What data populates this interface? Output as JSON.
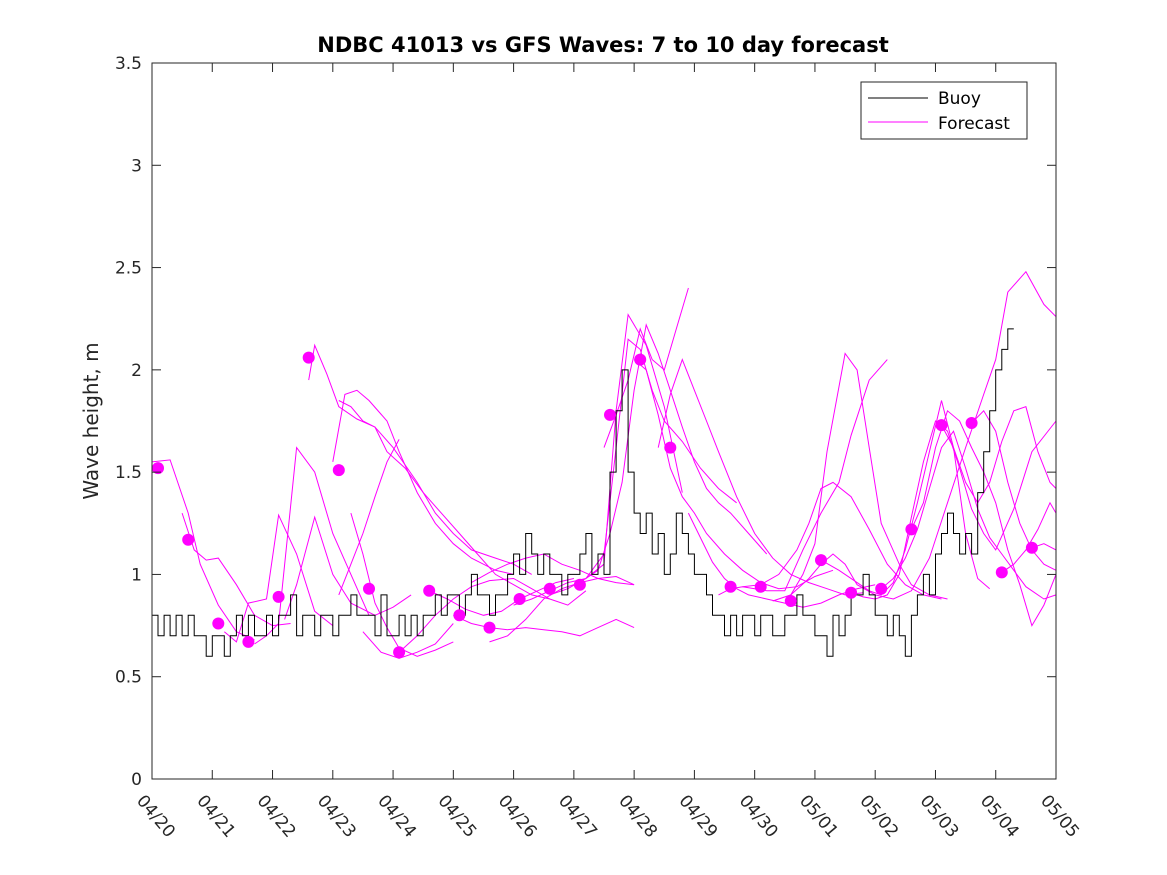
{
  "chart_data": {
    "type": "line",
    "title": "NDBC 41013 vs GFS Waves: 7 to 10 day forecast",
    "ylabel": "Wave height, m",
    "xlabel": "",
    "ylim": [
      0,
      3.5
    ],
    "xlim": [
      "04/20",
      "05/05"
    ],
    "yticks": [
      0,
      0.5,
      1,
      1.5,
      2,
      2.5,
      3,
      3.5
    ],
    "yticklabels": [
      "0",
      "0.5",
      "1",
      "1.5",
      "2",
      "2.5",
      "3",
      "3.5"
    ],
    "xticklabels": [
      "04/20",
      "04/21",
      "04/22",
      "04/23",
      "04/24",
      "04/25",
      "04/26",
      "04/27",
      "04/28",
      "04/29",
      "04/30",
      "05/01",
      "05/02",
      "05/03",
      "05/04",
      "05/05"
    ],
    "legend": {
      "location": "top-right",
      "entries": [
        "Buoy",
        "Forecast"
      ]
    },
    "colors": {
      "buoy": "#000000",
      "forecast": "#ff00ff"
    },
    "buoy": {
      "name": "Buoy",
      "x_day": [
        0,
        0.1,
        0.2,
        0.3,
        0.4,
        0.5,
        0.6,
        0.7,
        0.8,
        0.9,
        1.0,
        1.1,
        1.2,
        1.3,
        1.4,
        1.5,
        1.6,
        1.7,
        1.8,
        1.9,
        2.0,
        2.1,
        2.2,
        2.3,
        2.4,
        2.5,
        2.6,
        2.7,
        2.8,
        2.9,
        3.0,
        3.1,
        3.2,
        3.3,
        3.4,
        3.5,
        3.6,
        3.7,
        3.8,
        3.9,
        4.0,
        4.1,
        4.2,
        4.3,
        4.4,
        4.5,
        4.6,
        4.7,
        4.8,
        4.9,
        5.0,
        5.1,
        5.2,
        5.3,
        5.4,
        5.5,
        5.6,
        5.7,
        5.8,
        5.9,
        6.0,
        6.1,
        6.2,
        6.3,
        6.4,
        6.5,
        6.6,
        6.7,
        6.8,
        6.9,
        7.0,
        7.1,
        7.2,
        7.3,
        7.4,
        7.5,
        7.6,
        7.7,
        7.8,
        7.9,
        8.0,
        8.1,
        8.2,
        8.3,
        8.4,
        8.5,
        8.6,
        8.7,
        8.8,
        8.9,
        9.0,
        9.1,
        9.2,
        9.3,
        9.4,
        9.5,
        9.6,
        9.7,
        9.8,
        9.9,
        10.0,
        10.1,
        10.2,
        10.3,
        10.4,
        10.5,
        10.6,
        10.7,
        10.8,
        10.9,
        11.0,
        11.1,
        11.2,
        11.3,
        11.4,
        11.5,
        11.6,
        11.7,
        11.8,
        11.9,
        12.0,
        12.1,
        12.2,
        12.3,
        12.4,
        12.5,
        12.6,
        12.7,
        12.8,
        12.9,
        13.0,
        13.1,
        13.2,
        13.3,
        13.4,
        13.5,
        13.6,
        13.7,
        13.8,
        13.9,
        14.0,
        14.1,
        14.2,
        14.3
      ],
      "y": [
        0.8,
        0.7,
        0.8,
        0.7,
        0.8,
        0.7,
        0.8,
        0.7,
        0.7,
        0.6,
        0.7,
        0.7,
        0.6,
        0.7,
        0.8,
        0.7,
        0.8,
        0.7,
        0.7,
        0.8,
        0.7,
        0.8,
        0.8,
        0.9,
        0.7,
        0.8,
        0.8,
        0.7,
        0.8,
        0.8,
        0.7,
        0.8,
        0.8,
        0.9,
        0.8,
        0.8,
        0.8,
        0.7,
        0.9,
        0.7,
        0.7,
        0.8,
        0.7,
        0.8,
        0.7,
        0.8,
        0.8,
        0.9,
        0.8,
        0.9,
        0.9,
        0.8,
        0.9,
        1.0,
        0.9,
        0.9,
        0.8,
        0.9,
        0.9,
        1.0,
        1.1,
        1.0,
        1.2,
        1.1,
        1.0,
        1.1,
        1.0,
        1.0,
        0.9,
        1.0,
        1.0,
        1.1,
        1.2,
        1.0,
        1.1,
        1.0,
        1.5,
        1.8,
        2.0,
        1.5,
        1.3,
        1.2,
        1.3,
        1.1,
        1.2,
        1.0,
        1.1,
        1.3,
        1.2,
        1.1,
        1.0,
        1.0,
        0.9,
        0.8,
        0.8,
        0.7,
        0.8,
        0.7,
        0.8,
        0.8,
        0.7,
        0.8,
        0.8,
        0.7,
        0.7,
        0.8,
        0.8,
        0.9,
        0.8,
        0.8,
        0.7,
        0.7,
        0.6,
        0.8,
        0.7,
        0.8,
        0.9,
        0.9,
        1.0,
        0.9,
        0.8,
        0.8,
        0.7,
        0.8,
        0.7,
        0.6,
        0.8,
        0.9,
        1.0,
        0.9,
        1.1,
        1.2,
        1.3,
        1.2,
        1.1,
        1.2,
        1.1,
        1.4,
        1.6,
        1.8,
        2.0,
        2.1,
        2.2,
        2.2
      ]
    },
    "forecast_series": [
      {
        "x_day": [
          0,
          0.3,
          0.6,
          0.8,
          1.1,
          1.4,
          1.7
        ],
        "y": [
          1.55,
          1.56,
          1.3,
          1.05,
          0.85,
          0.72,
          0.68
        ]
      },
      {
        "x_day": [
          0.5,
          0.7,
          0.9,
          1.1,
          1.4,
          1.7,
          2.0,
          2.3
        ],
        "y": [
          1.3,
          1.12,
          1.07,
          1.08,
          0.95,
          0.8,
          0.75,
          0.76
        ]
      },
      {
        "x_day": [
          1.2,
          1.4,
          1.6,
          1.9,
          2.1,
          2.4,
          2.7,
          3.0
        ],
        "y": [
          0.72,
          0.67,
          0.86,
          0.88,
          1.29,
          1.1,
          0.82,
          0.75
        ]
      },
      {
        "x_day": [
          1.7,
          1.9,
          2.1,
          2.4,
          2.7,
          3.0,
          3.3,
          3.6
        ],
        "y": [
          0.66,
          0.7,
          0.76,
          1.62,
          1.5,
          1.2,
          1.0,
          0.8
        ]
      },
      {
        "x_day": [
          2.2,
          2.4,
          2.7,
          3.0,
          3.3,
          3.7,
          4.0,
          4.3
        ],
        "y": [
          0.78,
          0.95,
          1.28,
          1.0,
          0.86,
          0.8,
          0.84,
          0.9
        ]
      },
      {
        "x_day": [
          2.6,
          2.7,
          2.9,
          3.1,
          3.4,
          3.7,
          4.0,
          4.4,
          4.7,
          5.0,
          5.3,
          5.7,
          6.0,
          6.3
        ],
        "y": [
          1.95,
          2.12,
          1.98,
          1.82,
          1.76,
          1.72,
          1.62,
          1.45,
          1.3,
          1.2,
          1.12,
          1.08,
          1.05,
          1.0
        ]
      },
      {
        "x_day": [
          3.0,
          3.2,
          3.4,
          3.6,
          3.9,
          4.1,
          4.4,
          4.7,
          5.0,
          5.3,
          5.7,
          6.0
        ],
        "y": [
          1.55,
          1.88,
          1.9,
          1.85,
          1.75,
          1.6,
          1.4,
          1.25,
          1.15,
          1.08,
          1.02,
          1.0
        ]
      },
      {
        "x_day": [
          3.1,
          3.3,
          3.5,
          3.7,
          3.9,
          4.2,
          4.5,
          4.8,
          5.1,
          5.4,
          5.7,
          6.0,
          6.3,
          6.6
        ],
        "y": [
          1.85,
          1.82,
          1.75,
          1.72,
          1.6,
          1.52,
          1.4,
          1.3,
          1.2,
          1.1,
          1.0,
          0.95,
          0.9,
          0.88
        ]
      },
      {
        "x_day": [
          3.1,
          3.3,
          3.5,
          3.7,
          3.9,
          4.1
        ],
        "y": [
          0.9,
          1.05,
          1.2,
          1.38,
          1.55,
          1.66
        ]
      },
      {
        "x_day": [
          3.3,
          3.5,
          3.7,
          3.9,
          4.1,
          4.4,
          4.7,
          5.0
        ],
        "y": [
          1.3,
          1.1,
          0.86,
          0.74,
          0.64,
          0.6,
          0.63,
          0.67
        ]
      },
      {
        "x_day": [
          3.5,
          3.8,
          4.1,
          4.4,
          4.7,
          5.0
        ],
        "y": [
          0.72,
          0.62,
          0.59,
          0.62,
          0.66,
          0.76
        ]
      },
      {
        "x_day": [
          4.1,
          4.4,
          4.7,
          5.0,
          5.3,
          5.6,
          6.0,
          6.3,
          6.6,
          6.9,
          7.2
        ],
        "y": [
          0.62,
          0.7,
          0.8,
          0.88,
          0.94,
          0.97,
          0.98,
          0.93,
          0.88,
          0.85,
          0.92
        ]
      },
      {
        "x_day": [
          4.6,
          4.9,
          5.2,
          5.5,
          5.8,
          6.1,
          6.4,
          6.7,
          7.0
        ],
        "y": [
          0.92,
          0.88,
          0.83,
          0.8,
          0.82,
          0.88,
          0.92,
          0.96,
          0.98
        ]
      },
      {
        "x_day": [
          5.0,
          5.3,
          5.6,
          5.9,
          6.2,
          6.5,
          6.8,
          7.1,
          7.4,
          7.7,
          8.0
        ],
        "y": [
          0.8,
          0.76,
          0.74,
          0.73,
          0.74,
          0.73,
          0.72,
          0.7,
          0.74,
          0.78,
          0.74
        ]
      },
      {
        "x_day": [
          5.3,
          5.6,
          5.9,
          6.2,
          6.5,
          6.8,
          7.1,
          7.4,
          7.7,
          8.0
        ],
        "y": [
          0.96,
          1.01,
          1.05,
          1.08,
          1.1,
          1.05,
          1.02,
          0.98,
          0.96,
          0.95
        ]
      },
      {
        "x_day": [
          5.6,
          5.9,
          6.2,
          6.5,
          6.8,
          7.1,
          7.4,
          7.7,
          8.0
        ],
        "y": [
          0.67,
          0.7,
          0.78,
          0.88,
          0.93,
          0.96,
          0.98,
          0.99,
          0.95
        ]
      },
      {
        "x_day": [
          6.0,
          6.3,
          6.6,
          6.9,
          7.2,
          7.5,
          7.7,
          7.9,
          8.2,
          8.5,
          8.8
        ],
        "y": [
          0.85,
          0.88,
          0.92,
          0.96,
          0.98,
          1.05,
          1.8,
          2.27,
          2.12,
          1.82,
          1.4
        ]
      },
      {
        "x_day": [
          6.6,
          6.9,
          7.2,
          7.5,
          7.7,
          7.9,
          8.1,
          8.3,
          8.5,
          8.8,
          9.1,
          9.4,
          9.7
        ],
        "y": [
          0.9,
          0.93,
          0.98,
          1.1,
          1.62,
          2.15,
          2.1,
          1.9,
          1.75,
          1.65,
          1.52,
          1.42,
          1.35
        ]
      },
      {
        "x_day": [
          7.2,
          7.4,
          7.6,
          7.8,
          8.0,
          8.2,
          8.4,
          8.6,
          8.8,
          9.0,
          9.2,
          9.4,
          9.6,
          9.9,
          10.2
        ],
        "y": [
          0.98,
          1.02,
          1.2,
          1.45,
          1.9,
          2.22,
          2.08,
          1.9,
          1.72,
          1.55,
          1.42,
          1.35,
          1.3,
          1.2,
          1.1
        ]
      },
      {
        "x_day": [
          7.5,
          7.7,
          7.9,
          8.1,
          8.3,
          8.5,
          8.7,
          8.9
        ],
        "y": [
          1.62,
          1.78,
          1.95,
          2.2,
          2.05,
          2.0,
          2.2,
          2.4
        ]
      },
      {
        "x_day": [
          8.0,
          8.2,
          8.4,
          8.6,
          8.8,
          9.0,
          9.2,
          9.5,
          9.8,
          10.1,
          10.4,
          10.7,
          11.0,
          11.3
        ],
        "y": [
          2.05,
          2.0,
          1.78,
          1.52,
          1.38,
          1.3,
          1.2,
          1.1,
          1.02,
          0.96,
          0.93,
          0.94,
          0.99,
          1.02
        ]
      },
      {
        "x_day": [
          8.4,
          8.6,
          8.8,
          9.0,
          9.2,
          9.4,
          9.7,
          10.0,
          10.3,
          10.6,
          10.9,
          11.2,
          11.5,
          11.8
        ],
        "y": [
          1.62,
          1.88,
          2.05,
          1.9,
          1.75,
          1.6,
          1.38,
          1.2,
          1.08,
          1.0,
          0.96,
          0.93,
          0.9,
          0.91
        ]
      },
      {
        "x_day": [
          8.9,
          9.1,
          9.3,
          9.5,
          9.7,
          9.9,
          10.2,
          10.5,
          10.8,
          11.1,
          11.4,
          11.7,
          12.0
        ],
        "y": [
          1.3,
          1.18,
          1.06,
          0.98,
          0.93,
          0.9,
          0.88,
          0.86,
          0.84,
          0.86,
          0.9,
          0.93,
          0.95
        ]
      },
      {
        "x_day": [
          9.4,
          9.6,
          9.8,
          10.0,
          10.2,
          10.5,
          10.8,
          11.1,
          11.4,
          11.6,
          11.9,
          12.2
        ],
        "y": [
          0.9,
          0.93,
          0.94,
          0.93,
          0.92,
          0.92,
          1.12,
          1.3,
          1.45,
          1.68,
          1.95,
          2.05
        ]
      },
      {
        "x_day": [
          9.8,
          10.1,
          10.4,
          10.7,
          10.9,
          11.1,
          11.3,
          11.6,
          11.9,
          12.2,
          12.5,
          12.8,
          13.1
        ],
        "y": [
          0.94,
          0.95,
          1.0,
          1.12,
          1.25,
          1.42,
          1.45,
          1.38,
          1.22,
          1.05,
          0.95,
          0.9,
          0.88
        ]
      },
      {
        "x_day": [
          10.3,
          10.6,
          10.8,
          11.0,
          11.2,
          11.5,
          11.7,
          11.9,
          12.1,
          12.4,
          12.6,
          12.9,
          13.2
        ],
        "y": [
          0.87,
          0.9,
          1.0,
          1.15,
          1.6,
          2.08,
          2.0,
          1.62,
          1.25,
          1.05,
          0.95,
          0.9,
          0.88
        ]
      },
      {
        "x_day": [
          10.6,
          10.9,
          11.1,
          11.3,
          11.5,
          11.7,
          12.0,
          12.3,
          12.6,
          12.9,
          13.2,
          13.5,
          13.8,
          14.0,
          14.2,
          14.5,
          14.8,
          15.0
        ],
        "y": [
          0.9,
          0.98,
          1.05,
          1.1,
          1.05,
          0.95,
          0.9,
          0.88,
          0.92,
          1.08,
          1.35,
          1.62,
          1.88,
          2.05,
          2.38,
          2.48,
          2.32,
          2.26
        ]
      },
      {
        "x_day": [
          11.1,
          11.4,
          11.7,
          11.9,
          12.1,
          12.3,
          12.5,
          12.7,
          12.9,
          13.1,
          13.3,
          13.5,
          13.7,
          13.9
        ],
        "y": [
          1.07,
          1.02,
          0.96,
          0.92,
          0.9,
          0.96,
          1.12,
          1.35,
          1.6,
          1.85,
          1.62,
          1.2,
          0.98,
          0.93
        ]
      },
      {
        "x_day": [
          11.6,
          11.8,
          12.0,
          12.2,
          12.4,
          12.6,
          12.8,
          13.0,
          13.2,
          13.4,
          13.6,
          13.8,
          14.0,
          14.3,
          14.6,
          15.0
        ],
        "y": [
          0.91,
          0.89,
          0.88,
          0.9,
          1.0,
          1.28,
          1.55,
          1.75,
          1.7,
          1.52,
          1.32,
          1.2,
          1.12,
          1.32,
          1.6,
          1.75
        ]
      },
      {
        "x_day": [
          12.1,
          12.3,
          12.5,
          12.7,
          12.9,
          13.1,
          13.3,
          13.5,
          13.7,
          13.9,
          14.1,
          14.3,
          14.5,
          14.8,
          15.0
        ],
        "y": [
          0.93,
          0.98,
          1.08,
          1.22,
          1.42,
          1.62,
          1.7,
          1.52,
          1.32,
          1.18,
          1.1,
          1.02,
          0.94,
          0.88,
          0.9
        ]
      },
      {
        "x_day": [
          12.6,
          12.8,
          13.0,
          13.2,
          13.4,
          13.6,
          13.8,
          14.0,
          14.2,
          14.4,
          14.6,
          14.8,
          15.0
        ],
        "y": [
          1.22,
          1.35,
          1.62,
          1.8,
          1.75,
          1.62,
          1.5,
          1.35,
          1.12,
          0.95,
          0.75,
          0.85,
          1.0
        ]
      },
      {
        "x_day": [
          13.1,
          13.3,
          13.5,
          13.7,
          13.9,
          14.1,
          14.3,
          14.5,
          14.7,
          14.9,
          15.0
        ],
        "y": [
          1.73,
          1.62,
          1.45,
          1.35,
          1.45,
          1.65,
          1.8,
          1.82,
          1.6,
          1.45,
          1.42
        ]
      },
      {
        "x_day": [
          13.6,
          13.8,
          14.0,
          14.2,
          14.4,
          14.6,
          14.8,
          15.0
        ],
        "y": [
          1.74,
          1.8,
          1.7,
          1.45,
          1.25,
          1.12,
          1.05,
          1.02
        ]
      },
      {
        "x_day": [
          14.1,
          14.3,
          14.5,
          14.7,
          14.9,
          15.0
        ],
        "y": [
          1.01,
          1.05,
          1.12,
          1.22,
          1.35,
          1.3
        ]
      },
      {
        "x_day": [
          14.6,
          14.8,
          15.0
        ],
        "y": [
          1.13,
          1.15,
          1.12
        ]
      }
    ],
    "forecast_markers": {
      "x_day": [
        0.1,
        0.6,
        1.1,
        1.6,
        2.1,
        2.6,
        3.1,
        3.6,
        4.1,
        4.6,
        5.1,
        5.6,
        6.1,
        6.6,
        7.1,
        7.6,
        8.1,
        8.6,
        9.6,
        10.1,
        10.6,
        11.1,
        11.6,
        12.1,
        12.6,
        13.1,
        13.6,
        14.1,
        14.6
      ],
      "y": [
        1.52,
        1.17,
        0.76,
        0.67,
        0.89,
        2.06,
        1.51,
        0.93,
        0.62,
        0.92,
        0.8,
        0.74,
        0.88,
        0.93,
        0.95,
        1.78,
        2.05,
        1.62,
        0.94,
        0.94,
        0.87,
        1.07,
        0.91,
        0.93,
        1.22,
        1.73,
        1.74,
        1.01,
        1.13
      ]
    }
  }
}
